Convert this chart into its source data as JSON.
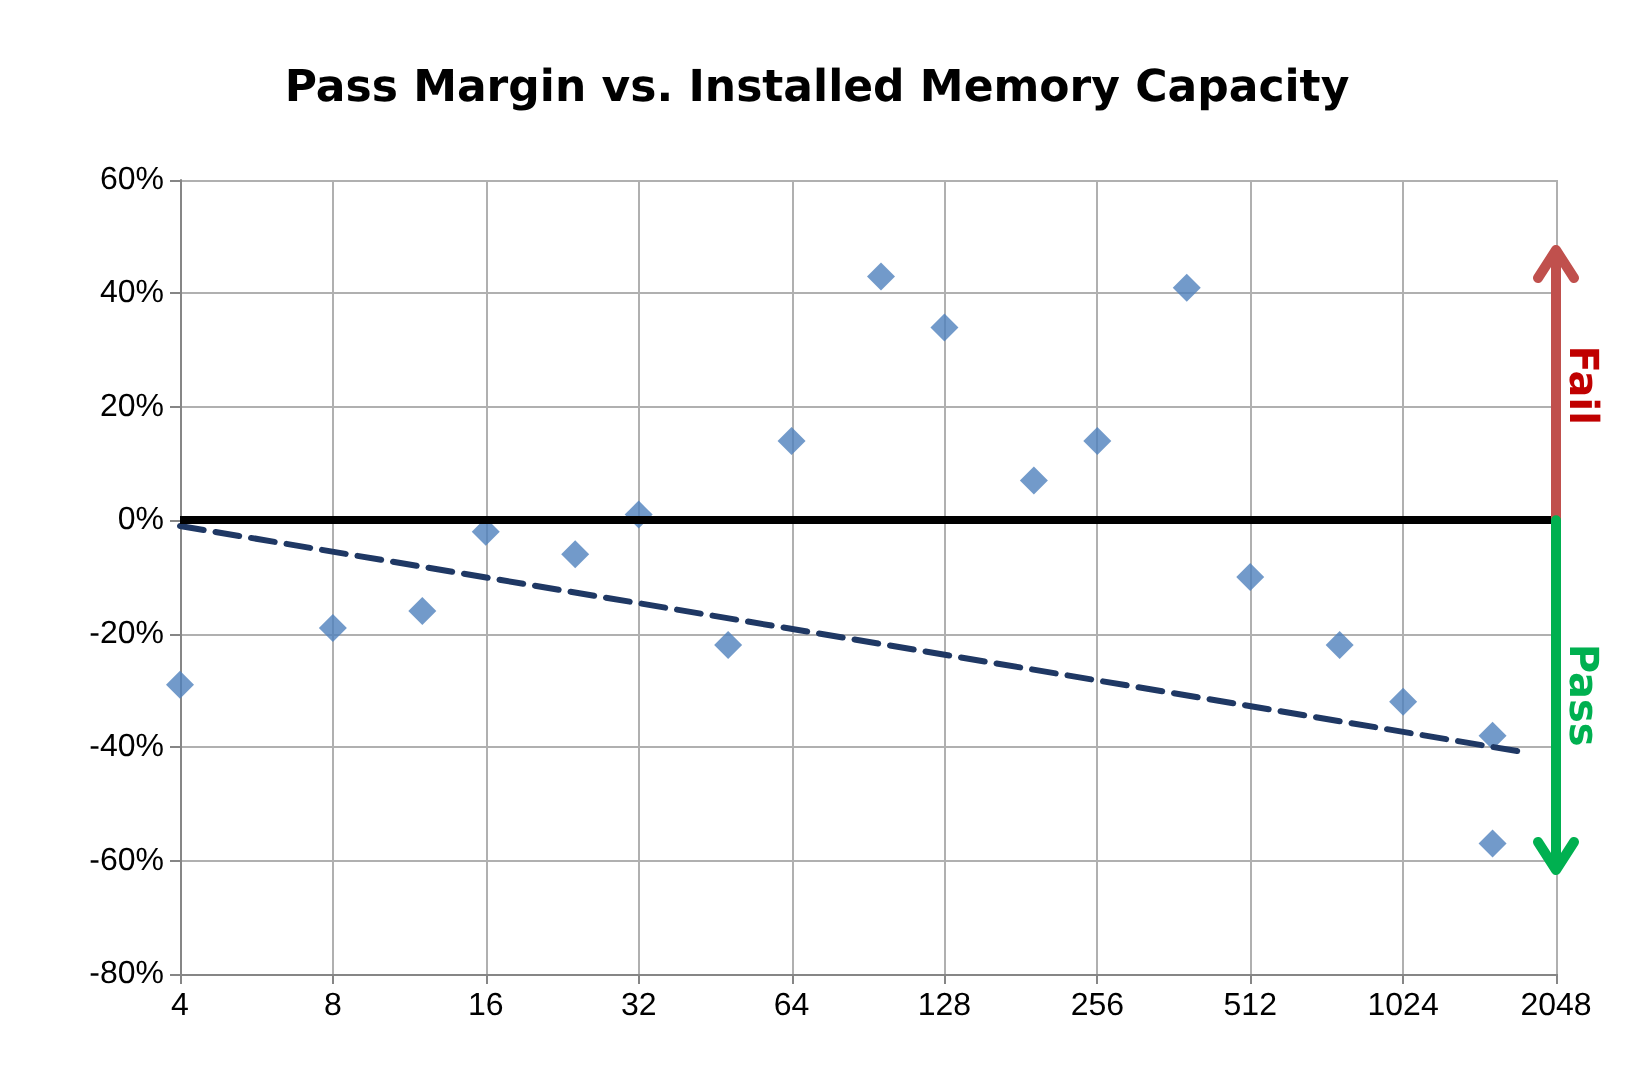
{
  "chart_data": {
    "type": "scatter",
    "title": "Pass Margin vs. Installed Memory Capacity",
    "log": "x",
    "grid": true,
    "marker": "diamond",
    "xlim": [
      4,
      2048
    ],
    "xticks": [
      4,
      8,
      16,
      32,
      64,
      128,
      256,
      512,
      1024,
      2048
    ],
    "ylim": [
      -80,
      60
    ],
    "yticks": [
      {
        "value": -80,
        "label": "-80%"
      },
      {
        "value": -60,
        "label": "-60%"
      },
      {
        "value": -40,
        "label": "-40%"
      },
      {
        "value": -20,
        "label": "-20%"
      },
      {
        "value": 0,
        "label": "0%"
      },
      {
        "value": 20,
        "label": "20%"
      },
      {
        "value": 40,
        "label": "40%"
      },
      {
        "value": 60,
        "label": "60%"
      }
    ],
    "series": [
      {
        "color": "#4f81bd",
        "x": [
          4,
          8,
          12,
          16,
          24,
          32,
          48,
          64,
          96,
          128,
          192,
          256,
          384,
          512,
          768,
          1024,
          1536,
          1536
        ],
        "values": [
          -29,
          -19,
          -16,
          -2,
          -6,
          1,
          -22,
          14,
          43,
          34,
          7,
          14,
          41,
          -10,
          -22,
          -32,
          -38,
          -57
        ]
      },
      {
        "type": "line",
        "color": "#1f3864",
        "line_style": "dashed",
        "marker": "none",
        "x": [
          4,
          1800
        ],
        "values": [
          -1,
          -41
        ]
      }
    ],
    "ref_lines": [
      {
        "axis": "y",
        "value": 0,
        "color": "#000000"
      }
    ],
    "annotations": [
      "Fail",
      "Pass"
    ]
  }
}
